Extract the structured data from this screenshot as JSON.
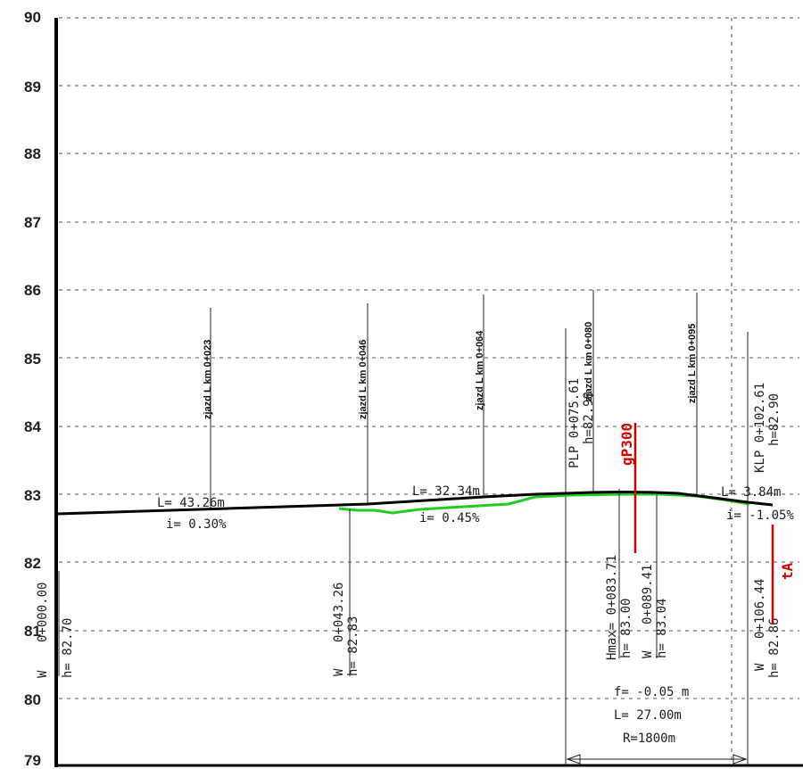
{
  "y_axis": {
    "labels": [
      "90",
      "89",
      "88",
      "87",
      "86",
      "85",
      "84",
      "83",
      "82",
      "81",
      "80",
      "79"
    ]
  },
  "junctions": [
    {
      "label": "zjazd L km 0+023"
    },
    {
      "label": "zjazd L km 0+046"
    },
    {
      "label": "zjazd L km 0+064"
    },
    {
      "label": "zjazd L km 0+080"
    },
    {
      "label": "zjazd L km 0+095"
    }
  ],
  "grade_segments": [
    {
      "length": "L= 43.26m",
      "grade": "i= 0.30%"
    },
    {
      "length": "L= 32.34m",
      "grade": "i= 0.45%"
    },
    {
      "length": "L= 3.84m",
      "grade": "i= -1.05%"
    }
  ],
  "points": [
    {
      "w": "W",
      "km": "0+000.00",
      "h": "h= 82.70"
    },
    {
      "w": "W",
      "km": "0+043.26",
      "h": "h= 82.83"
    },
    {
      "w": "W",
      "km": "0+089.41",
      "h": "h= 83.04"
    },
    {
      "w": "W",
      "km": "0+106.44",
      "h": "h= 82.86"
    }
  ],
  "hmax": {
    "km": "Hmax= 0+083.71",
    "h": "h= 83.00"
  },
  "plp": {
    "km": "PLP 0+075.61",
    "h": "h=82.98"
  },
  "klp": {
    "km": "KLP 0+102.61",
    "h": "h=82.90"
  },
  "curve": {
    "f": "f= -0.05 m",
    "L": "L= 27.00m",
    "R": "R=1800m"
  },
  "markers": {
    "gp300": "gP300",
    "ta": "tA"
  },
  "colors": {
    "profile": "#000000",
    "terrain": "#22cc22",
    "marker": "#d40000"
  }
}
